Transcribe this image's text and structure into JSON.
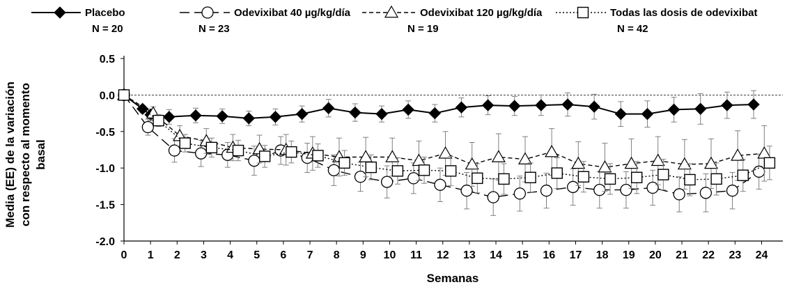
{
  "chart_data": {
    "type": "line",
    "xlabel": "Semanas",
    "ylabel": [
      "Media (EE) de la variación",
      "con respecto al momento",
      "basal"
    ],
    "ylim": [
      -2.0,
      0.5
    ],
    "yticks": [
      "0.5",
      "0.0",
      "-0.5",
      "-1.0",
      "-1.5",
      "-2.0"
    ],
    "xlim": [
      0,
      24.8
    ],
    "xticks": [
      "0",
      "1",
      "2",
      "3",
      "4",
      "5",
      "6",
      "7",
      "8",
      "9",
      "10",
      "11",
      "12",
      "13",
      "14",
      "15",
      "16",
      "17",
      "18",
      "19",
      "20",
      "21",
      "22",
      "23",
      "24"
    ],
    "reference_line": 0.0,
    "legend_position": "top",
    "series": [
      {
        "name": "Placebo",
        "n_label": "N = 20",
        "marker": "filled-diamond",
        "line_style": "solid",
        "x": [
          0,
          0.7,
          1.0,
          1.7,
          2.7,
          3.7,
          4.7,
          5.7,
          6.7,
          7.7,
          8.7,
          9.7,
          10.7,
          11.7,
          12.7,
          13.7,
          14.7,
          15.7,
          16.7,
          17.7,
          18.7,
          19.7,
          20.7,
          21.7,
          22.7,
          23.7
        ],
        "y": [
          0,
          -0.19,
          -0.27,
          -0.3,
          -0.28,
          -0.29,
          -0.32,
          -0.3,
          -0.26,
          -0.18,
          -0.24,
          -0.26,
          -0.2,
          -0.25,
          -0.17,
          -0.14,
          -0.15,
          -0.14,
          -0.13,
          -0.16,
          -0.26,
          -0.26,
          -0.2,
          -0.19,
          -0.14,
          -0.13
        ],
        "err": [
          0,
          0.05,
          0.08,
          0.1,
          0.1,
          0.1,
          0.1,
          0.11,
          0.11,
          0.12,
          0.12,
          0.11,
          0.12,
          0.12,
          0.13,
          0.13,
          0.13,
          0.14,
          0.16,
          0.17,
          0.17,
          0.18,
          0.17,
          0.21,
          0.18,
          0.19
        ]
      },
      {
        "name": "Odevixibat 40 µg/kg/día",
        "n_label": "N = 23",
        "marker": "open-circle",
        "line_style": "long-dash",
        "x": [
          0,
          0.9,
          1.9,
          2.9,
          3.9,
          4.9,
          5.9,
          6.9,
          7.9,
          8.9,
          9.9,
          10.9,
          11.9,
          12.9,
          13.9,
          14.9,
          15.9,
          16.9,
          17.9,
          18.9,
          19.9,
          20.9,
          21.9,
          22.9,
          23.9
        ],
        "y": [
          0,
          -0.44,
          -0.76,
          -0.8,
          -0.82,
          -0.9,
          -0.76,
          -0.86,
          -1.03,
          -1.12,
          -1.19,
          -1.14,
          -1.23,
          -1.31,
          -1.4,
          -1.35,
          -1.31,
          -1.26,
          -1.3,
          -1.3,
          -1.27,
          -1.36,
          -1.34,
          -1.31,
          -1.05
        ],
        "err": [
          0,
          0.11,
          0.16,
          0.18,
          0.17,
          0.2,
          0.19,
          0.2,
          0.21,
          0.2,
          0.22,
          0.21,
          0.23,
          0.25,
          0.25,
          0.24,
          0.24,
          0.25,
          0.25,
          0.25,
          0.24,
          0.24,
          0.26,
          0.25,
          0.24
        ]
      },
      {
        "name": "Odevixibat 120 µg/kg/día",
        "n_label": "N = 19",
        "marker": "open-triangle",
        "line_style": "short-dash",
        "x": [
          0,
          1.1,
          2.1,
          3.1,
          4.1,
          5.1,
          6.1,
          7.1,
          8.1,
          9.1,
          10.1,
          11.1,
          12.1,
          13.1,
          14.1,
          15.1,
          16.1,
          17.1,
          18.1,
          19.1,
          20.1,
          21.1,
          22.1,
          23.1,
          24.1
        ],
        "y": [
          0,
          -0.25,
          -0.56,
          -0.63,
          -0.72,
          -0.74,
          -0.75,
          -0.8,
          -0.85,
          -0.85,
          -0.85,
          -0.9,
          -0.8,
          -0.95,
          -0.85,
          -0.88,
          -0.78,
          -0.94,
          -0.99,
          -0.94,
          -0.9,
          -0.95,
          -0.94,
          -0.83,
          -0.8
        ],
        "err": [
          0,
          0.09,
          0.14,
          0.17,
          0.18,
          0.19,
          0.21,
          0.23,
          0.26,
          0.27,
          0.26,
          0.27,
          0.3,
          0.3,
          0.32,
          0.31,
          0.32,
          0.3,
          0.33,
          0.34,
          0.33,
          0.34,
          0.34,
          0.34,
          0.38
        ]
      },
      {
        "name": "Todas las dosis de odevixibat",
        "n_label": "N = 42",
        "marker": "open-square",
        "line_style": "dotted",
        "x": [
          0,
          1.3,
          2.3,
          3.3,
          4.3,
          5.3,
          6.3,
          7.3,
          8.3,
          9.3,
          10.3,
          11.3,
          12.3,
          13.3,
          14.3,
          15.3,
          16.3,
          17.3,
          18.3,
          19.3,
          20.3,
          21.3,
          22.3,
          23.3,
          24.3
        ],
        "y": [
          0,
          -0.35,
          -0.66,
          -0.72,
          -0.76,
          -0.84,
          -0.78,
          -0.83,
          -0.93,
          -0.99,
          -1.04,
          -1.03,
          -1.04,
          -1.14,
          -1.15,
          -1.13,
          -1.07,
          -1.12,
          -1.15,
          -1.13,
          -1.09,
          -1.16,
          -1.15,
          -1.1,
          -0.93
        ],
        "err": [
          0,
          0.08,
          0.12,
          0.13,
          0.14,
          0.15,
          0.15,
          0.16,
          0.17,
          0.17,
          0.18,
          0.18,
          0.2,
          0.2,
          0.21,
          0.2,
          0.21,
          0.21,
          0.21,
          0.22,
          0.21,
          0.22,
          0.22,
          0.22,
          0.23
        ]
      }
    ]
  }
}
